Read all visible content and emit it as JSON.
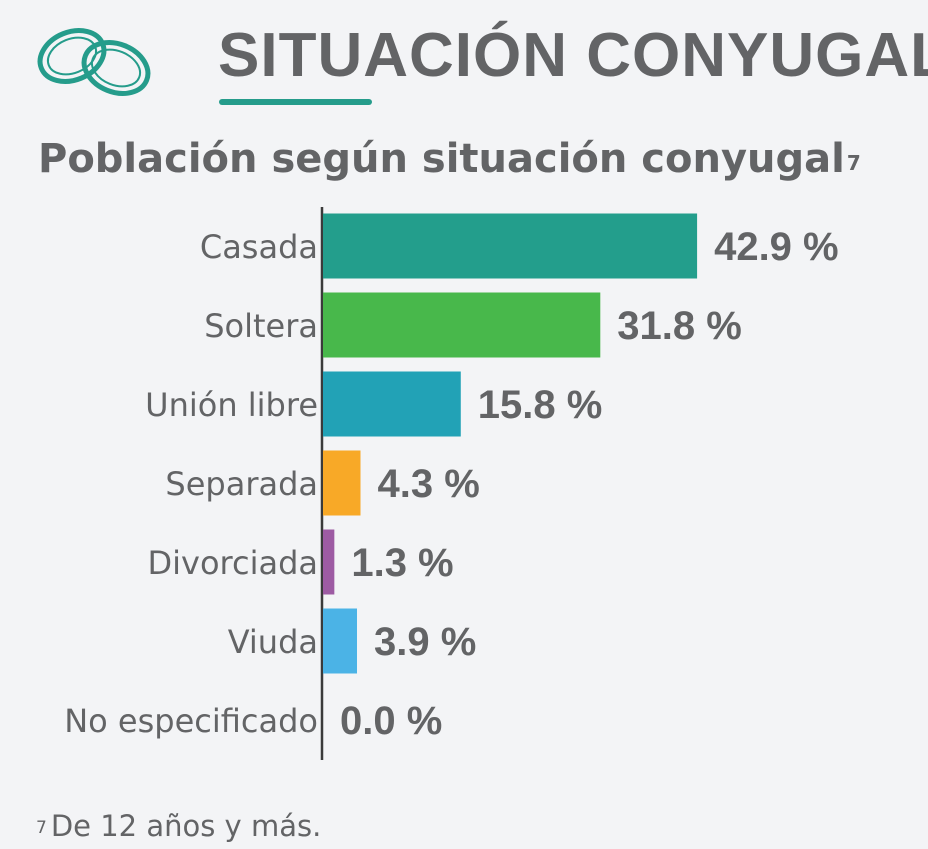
{
  "header": {
    "title": "SITUACIÓN CONYUGAL",
    "icon": "wedding-rings-icon",
    "accent_color": "#259c8b"
  },
  "chart_data": {
    "type": "bar",
    "orientation": "horizontal",
    "title": "Población según situación conyugal",
    "title_footnote_marker": "7",
    "categories": [
      "Casada",
      "Soltera",
      "Unión libre",
      "Separada",
      "Divorciada",
      "Viuda",
      "No especificado"
    ],
    "values": [
      42.9,
      31.8,
      15.8,
      4.3,
      1.3,
      3.9,
      0.0
    ],
    "value_labels": [
      "42.9 %",
      "31.8 %",
      "15.8 %",
      "4.3 %",
      "1.3 %",
      "3.9 %",
      "0.0 %"
    ],
    "colors": [
      "#239e8c",
      "#48b84b",
      "#22a2b6",
      "#f8a927",
      "#9d5ba3",
      "#4bb3e6",
      "#9aa0a6"
    ],
    "xlabel": "",
    "ylabel": "",
    "grid": false,
    "legend": "none"
  },
  "footnote": {
    "marker": "7",
    "text": "De 12 años y más."
  }
}
